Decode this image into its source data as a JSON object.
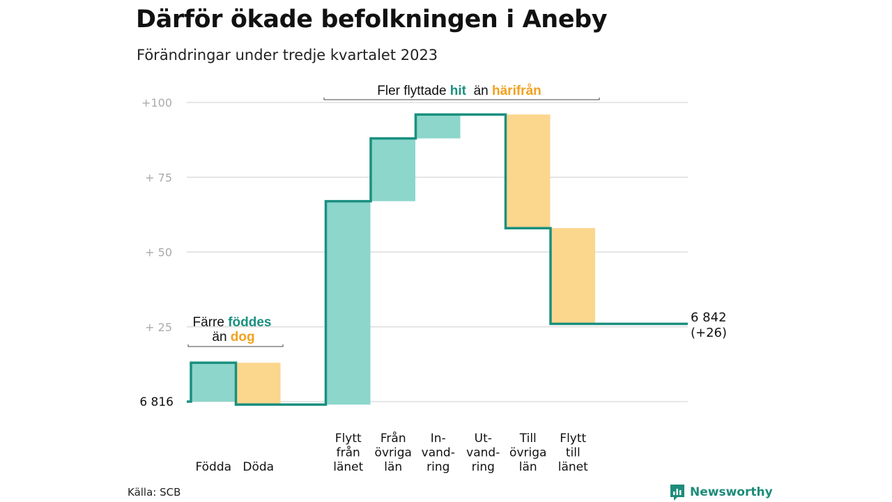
{
  "header": {
    "title": "Därför ökade befolkningen i Aneby",
    "subtitle": "Förändringar under tredje kvartalet 2023"
  },
  "footer": {
    "source": "Källa: SCB",
    "logo_text": "Newsworthy"
  },
  "colors": {
    "increase": "#8dd6cb",
    "decrease": "#fbd68d",
    "line": "#1a9080",
    "accent_teal": "#1a9080",
    "accent_orange": "#f2a11f",
    "grid": "#dddddd",
    "tick": "#aaaaaa"
  },
  "chart_data": {
    "type": "waterfall",
    "title": "Därför ökade befolkningen i Aneby",
    "subtitle": "Förändringar under tredje kvartalet 2023",
    "baseline_label": "6  816",
    "start": 0,
    "y_ticks": [
      {
        "value": 25,
        "label": "+  25"
      },
      {
        "value": 50,
        "label": "+  50"
      },
      {
        "value": 75,
        "label": "+  75"
      },
      {
        "value": 100,
        "label": "+100"
      }
    ],
    "ylim": [
      0,
      100
    ],
    "categories": [
      {
        "slot": 0,
        "lines": [
          "",
          "",
          "Födda"
        ]
      },
      {
        "slot": 1,
        "lines": [
          "",
          "",
          "Döda"
        ]
      },
      {
        "slot": 3,
        "lines": [
          "Flytt",
          "från",
          "länet"
        ]
      },
      {
        "slot": 4,
        "lines": [
          "Från",
          "övriga",
          "län"
        ]
      },
      {
        "slot": 5,
        "lines": [
          "In-",
          "vand-",
          "ring"
        ]
      },
      {
        "slot": 6,
        "lines": [
          "Ut-",
          "vand-",
          "ring"
        ]
      },
      {
        "slot": 7,
        "lines": [
          "Till",
          "övriga",
          "län"
        ]
      },
      {
        "slot": 8,
        "lines": [
          "Flytt",
          "till",
          "länet"
        ]
      }
    ],
    "steps": [
      {
        "category": "Födda",
        "slot": 0,
        "value": 13
      },
      {
        "category": "Döda",
        "slot": 1,
        "value": -14
      },
      {
        "category": "Flytt från länet",
        "slot": 3,
        "value": 68
      },
      {
        "category": "Från övriga län",
        "slot": 4,
        "value": 21
      },
      {
        "category": "Invandring",
        "slot": 5,
        "value": 8
      },
      {
        "category": "Utvandring",
        "slot": 6,
        "value": 0
      },
      {
        "category": "Till övriga län",
        "slot": 7,
        "value": -38
      },
      {
        "category": "Flytt till länet",
        "slot": 8,
        "value": -32
      }
    ],
    "end_value": 26,
    "end_label": [
      "6 842",
      "(+26)"
    ],
    "annotations": {
      "births": {
        "line1": [
          {
            "text": "Färre ",
            "style": "plain"
          },
          {
            "text": "föddes",
            "style": "teal"
          }
        ],
        "line2": [
          {
            "text": "än ",
            "style": "plain"
          },
          {
            "text": "dog",
            "style": "orange"
          }
        ]
      },
      "migration": {
        "line1": [
          {
            "text": "Fler flyttade ",
            "style": "plain"
          },
          {
            "text": "hit",
            "style": "teal"
          },
          {
            "text": "  än ",
            "style": "plain"
          },
          {
            "text": "härifrån",
            "style": "orange"
          }
        ]
      }
    }
  }
}
